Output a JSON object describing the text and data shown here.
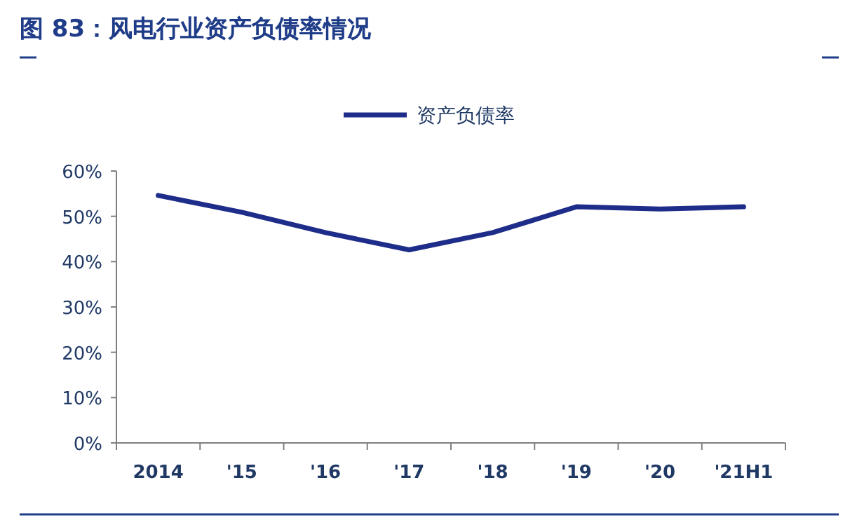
{
  "chart_data": {
    "type": "line",
    "title": "图 83：风电行业资产负债率情况",
    "categories": [
      "2014",
      "'15",
      "'16",
      "'17",
      "'18",
      "'19",
      "'20",
      "'21H1"
    ],
    "series": [
      {
        "name": "资产负债率",
        "color": "#1f2d8a",
        "values": [
          54.6,
          50.9,
          46.4,
          42.6,
          46.4,
          52.1,
          51.6,
          52.1
        ]
      }
    ],
    "ylim": [
      0,
      60
    ],
    "yticks": [
      {
        "value": 0,
        "label": "0%"
      },
      {
        "value": 10,
        "label": "10%"
      },
      {
        "value": 20,
        "label": "20%"
      },
      {
        "value": 30,
        "label": "30%"
      },
      {
        "value": 40,
        "label": "40%"
      },
      {
        "value": 50,
        "label": "50%"
      },
      {
        "value": 60,
        "label": "60%"
      }
    ],
    "grid": false,
    "legend": "top",
    "marker": "none",
    "line_style": "solid"
  }
}
